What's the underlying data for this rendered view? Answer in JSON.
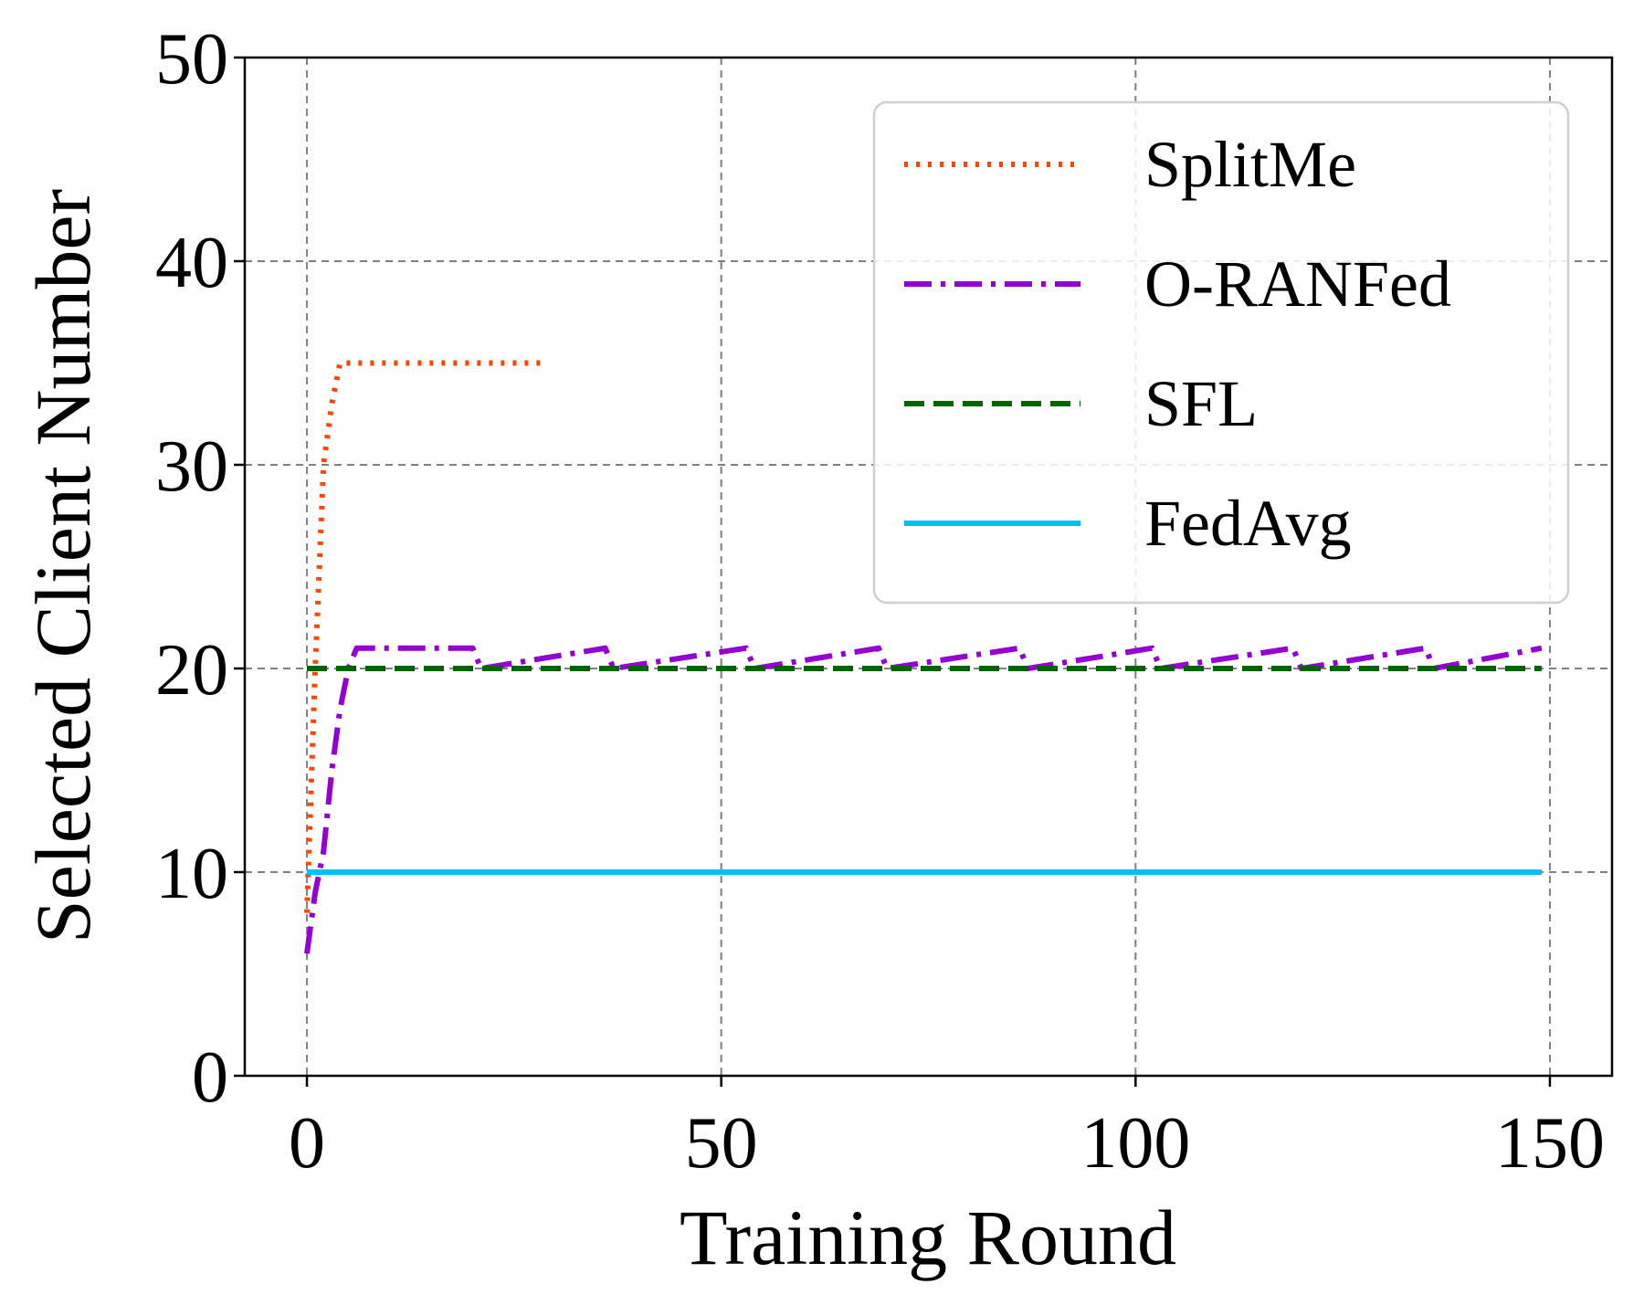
{
  "chart_data": {
    "type": "line",
    "title": "",
    "xlabel": "Training Round",
    "ylabel": "Selected Client Number",
    "xlim": [
      -7.5,
      157.5
    ],
    "ylim": [
      0,
      50
    ],
    "xticks": [
      0,
      50,
      100,
      150
    ],
    "yticks": [
      0,
      10,
      20,
      30,
      40,
      50
    ],
    "xtick_labels": [
      "0",
      "50",
      "100",
      "150"
    ],
    "ytick_labels": [
      "0",
      "10",
      "20",
      "30",
      "40",
      "50"
    ],
    "grid": true,
    "legend_position": "top-right",
    "series": [
      {
        "name": "SplitMe",
        "color": "#ff4500",
        "style": "dotted",
        "x": [
          0,
          1,
          2,
          3,
          4,
          5,
          10,
          15,
          20,
          25,
          29
        ],
        "y": [
          8,
          20,
          30,
          33,
          35,
          35,
          35,
          35,
          35,
          35,
          35
        ]
      },
      {
        "name": "O-RANFed",
        "color": "#9400d3",
        "style": "dashdot",
        "x": [
          0,
          1,
          2,
          3,
          4,
          5,
          6,
          20,
          21,
          36,
          37,
          53,
          54,
          69,
          70,
          86,
          87,
          102,
          103,
          119,
          120,
          135,
          136,
          149
        ],
        "y": [
          6,
          9,
          11,
          15,
          18,
          20,
          21,
          21,
          20,
          21,
          20,
          21,
          20,
          21,
          20,
          21,
          20,
          21,
          20,
          21,
          20,
          21,
          20,
          21
        ]
      },
      {
        "name": "SFL",
        "color": "#006400",
        "style": "dashed",
        "x": [
          0,
          149
        ],
        "y": [
          20,
          20
        ]
      },
      {
        "name": "FedAvg",
        "color": "#00bfff",
        "style": "solid",
        "x": [
          0,
          149
        ],
        "y": [
          10,
          10
        ]
      }
    ]
  }
}
